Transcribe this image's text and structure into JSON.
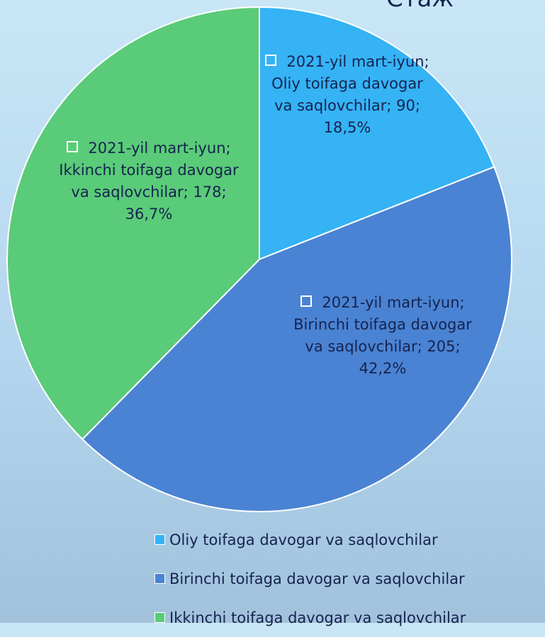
{
  "chart_data": {
    "type": "pie",
    "title": "Стаж",
    "categories": [
      "Oliy toifaga davogar va saqlovchilar",
      "Birinchi toifaga davogar va saqlovchilar",
      "Ikkinchi toifaga davogar va saqlovchilar"
    ],
    "values": [
      90,
      205,
      178
    ],
    "value_labels": [
      "2021-yil mart-iyun; Oliy toifaga davogar va saqlovchilar; 90; 18,5%",
      "2021-yil mart-iyun; Birinchi toifaga davogar va saqlovchilar; 205; 42,2%",
      "2021-yil mart-iyun; Ikkinchi toifaga davogar va saqlovchilar; 178; 36,7%"
    ],
    "colors": [
      "#35b3f5",
      "#4a83d3",
      "#5acb78"
    ],
    "legend": "bottom"
  }
}
